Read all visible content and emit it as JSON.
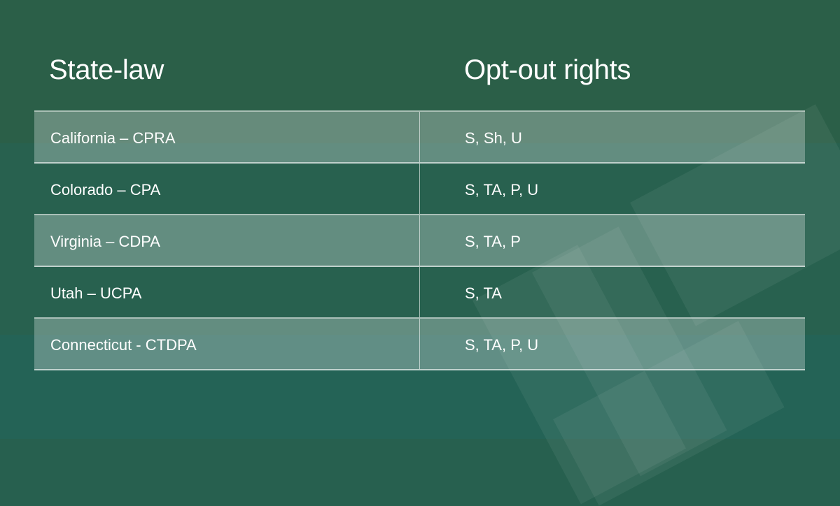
{
  "headers": {
    "state_law": "State-law",
    "opt_out": "Opt-out rights"
  },
  "rows": [
    {
      "state": "California",
      "sep": " – ",
      "law": "CPRA",
      "rights": "S, Sh, U"
    },
    {
      "state": "Colorado",
      "sep": " – ",
      "law": "CPA",
      "rights": "S, TA, P, U"
    },
    {
      "state": "Virginia",
      "sep": " – ",
      "law": "CDPA",
      "rights": "S, TA, P"
    },
    {
      "state": "Utah",
      "sep": " – ",
      "law": "UCPA",
      "rights": "S, TA"
    },
    {
      "state": "Connecticut",
      "sep": " - ",
      "law": "CTDPA",
      "rights": "S, TA, P, U"
    }
  ],
  "colors": {
    "background": "#28614f",
    "text": "#ffffff"
  }
}
